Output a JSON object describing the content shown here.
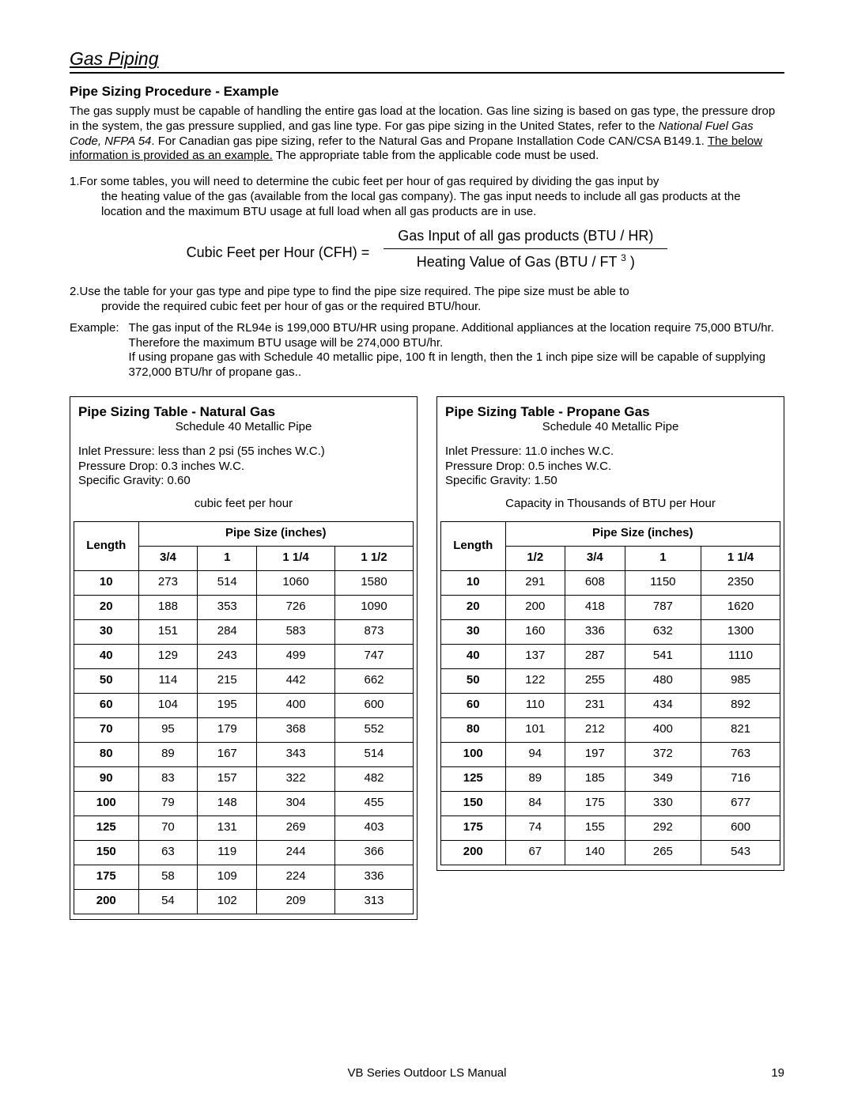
{
  "header": {
    "section": "Gas Piping",
    "title": "Pipe Sizing Procedure - Example"
  },
  "intro": {
    "p1a": "The gas supply must be capable of handling the entire gas load at the location.  Gas line sizing is based on gas type, the pressure drop in the system, the gas pressure supplied, and gas line type.  For gas pipe sizing in the United States, refer to the ",
    "p1b_ital": "National Fuel Gas Code, NFPA 54",
    "p1c": ".  For Canadian gas pipe sizing, refer to the Natural Gas and Propane Installation Code CAN/CSA B149.1.  ",
    "p1d_under": "The below information is provided as an example.",
    "p1e": "  The appropriate table from the applicable code must be used."
  },
  "steps": {
    "s1_num": "1.",
    "s1a": "For some tables, you will need to determine the cubic feet per hour of gas required by dividing the gas input by",
    "s1b": "the heating value of the gas (available from the local gas company).  The gas input needs to include all gas products at the location and the maximum BTU usage at full load when all gas products are in use.",
    "s2_num": "2.",
    "s2a": "Use the table for your gas type and pipe type to find the pipe size required.  The pipe size must be able to",
    "s2b": "provide the required cubic feet per hour of gas or the required BTU/hour."
  },
  "formula": {
    "lhs": "Cubic Feet per Hour (CFH) =",
    "numer": "Gas Input of all gas products (BTU / HR)",
    "denom_a": "Heating Value of Gas (BTU / FT ",
    "denom_sup": "3",
    "denom_b": " )"
  },
  "example": {
    "label": "Example:",
    "text": "The gas input of the RL94e is 199,000 BTU/HR using propane.   Additional appliances at the location require 75,000 BTU/hr.  Therefore the maximum BTU usage will be 274,000 BTU/hr.\nIf using propane gas with Schedule 40 metallic pipe, 100 ft in length, then the 1 inch pipe size will be capable of supplying 372,000 BTU/hr of propane gas.."
  },
  "table_ng": {
    "title": "Pipe Sizing Table - Natural Gas",
    "subtitle": "Schedule 40 Metallic Pipe",
    "meta1": "Inlet Pressure:     less than 2 psi (55 inches W.C.)",
    "meta2": "Pressure Drop:    0.3 inches W.C.",
    "meta3": "Specific Gravity: 0.60",
    "unit": "cubic feet per hour",
    "col_head": "Pipe Size (inches)",
    "len_head": "Length",
    "cols": [
      "3/4",
      "1",
      "1 1/4",
      "1 1/2"
    ],
    "rows": [
      [
        "10",
        "273",
        "514",
        "1060",
        "1580"
      ],
      [
        "20",
        "188",
        "353",
        "726",
        "1090"
      ],
      [
        "30",
        "151",
        "284",
        "583",
        "873"
      ],
      [
        "40",
        "129",
        "243",
        "499",
        "747"
      ],
      [
        "50",
        "114",
        "215",
        "442",
        "662"
      ],
      [
        "60",
        "104",
        "195",
        "400",
        "600"
      ],
      [
        "70",
        "95",
        "179",
        "368",
        "552"
      ],
      [
        "80",
        "89",
        "167",
        "343",
        "514"
      ],
      [
        "90",
        "83",
        "157",
        "322",
        "482"
      ],
      [
        "100",
        "79",
        "148",
        "304",
        "455"
      ],
      [
        "125",
        "70",
        "131",
        "269",
        "403"
      ],
      [
        "150",
        "63",
        "119",
        "244",
        "366"
      ],
      [
        "175",
        "58",
        "109",
        "224",
        "336"
      ],
      [
        "200",
        "54",
        "102",
        "209",
        "313"
      ]
    ]
  },
  "table_pg": {
    "title": "Pipe Sizing Table - Propane Gas",
    "subtitle": "Schedule 40 Metallic Pipe",
    "meta1": "Inlet Pressure:     11.0 inches W.C.",
    "meta2": "Pressure Drop:    0.5 inches W.C.",
    "meta3": "Specific Gravity: 1.50",
    "unit": "Capacity in Thousands of BTU per Hour",
    "col_head": "Pipe Size (inches)",
    "len_head": "Length",
    "cols": [
      "1/2",
      "3/4",
      "1",
      "1 1/4"
    ],
    "rows": [
      [
        "10",
        "291",
        "608",
        "1150",
        "2350"
      ],
      [
        "20",
        "200",
        "418",
        "787",
        "1620"
      ],
      [
        "30",
        "160",
        "336",
        "632",
        "1300"
      ],
      [
        "40",
        "137",
        "287",
        "541",
        "1110"
      ],
      [
        "50",
        "122",
        "255",
        "480",
        "985"
      ],
      [
        "60",
        "110",
        "231",
        "434",
        "892"
      ],
      [
        "80",
        "101",
        "212",
        "400",
        "821"
      ],
      [
        "100",
        "94",
        "197",
        "372",
        "763"
      ],
      [
        "125",
        "89",
        "185",
        "349",
        "716"
      ],
      [
        "150",
        "84",
        "175",
        "330",
        "677"
      ],
      [
        "175",
        "74",
        "155",
        "292",
        "600"
      ],
      [
        "200",
        "67",
        "140",
        "265",
        "543"
      ]
    ]
  },
  "footer": {
    "center": "VB Series Outdoor LS Manual",
    "page": "19"
  }
}
